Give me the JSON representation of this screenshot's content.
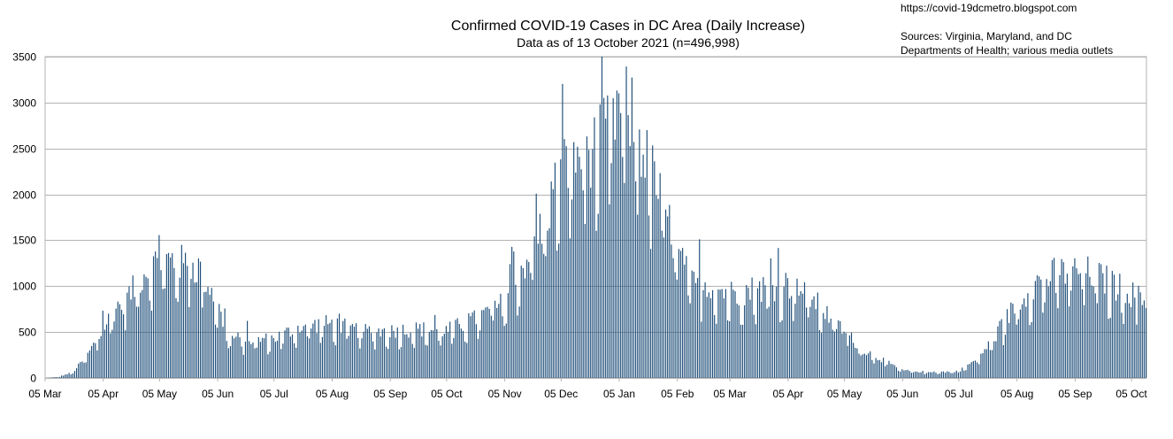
{
  "chart_data": {
    "type": "bar",
    "title": "Confirmed COVID-19 Cases in DC Area (Daily Increase)",
    "subtitle": "Data as of 13 October 2021 (n=496,998)",
    "xlabel": "",
    "ylabel": "",
    "ylim": [
      0,
      3500
    ],
    "yticks": [
      0,
      500,
      1000,
      1500,
      2000,
      2500,
      3000,
      3500
    ],
    "x_start_date": "2020-03-05",
    "x_end_date": "2021-10-13",
    "xtick_labels": [
      "05 Mar",
      "05 Apr",
      "05 May",
      "05 Jun",
      "05 Jul",
      "05 Aug",
      "05 Sep",
      "05 Oct",
      "05 Nov",
      "05 Dec",
      "05 Jan",
      "05 Feb",
      "05 Mar",
      "05 Apr",
      "05 May",
      "05 Jun",
      "05 Jul",
      "05 Aug",
      "05 Sep",
      "05 Oct"
    ],
    "xtick_dates": [
      "2020-03-05",
      "2020-04-05",
      "2020-05-05",
      "2020-06-05",
      "2020-07-05",
      "2020-08-05",
      "2020-09-05",
      "2020-10-05",
      "2020-11-05",
      "2020-12-05",
      "2021-01-05",
      "2021-02-05",
      "2021-03-05",
      "2021-04-05",
      "2021-05-05",
      "2021-06-05",
      "2021-07-05",
      "2021-08-05",
      "2021-09-05",
      "2021-10-05"
    ],
    "grid": true,
    "bar_color": "#1f4e79",
    "series": [
      {
        "name": "",
        "anchors": [
          [
            "2020-03-05",
            0
          ],
          [
            "2020-03-12",
            10
          ],
          [
            "2020-03-20",
            60
          ],
          [
            "2020-03-28",
            250
          ],
          [
            "2020-04-05",
            520
          ],
          [
            "2020-04-12",
            750
          ],
          [
            "2020-04-20",
            900
          ],
          [
            "2020-04-28",
            1150
          ],
          [
            "2020-05-05",
            1250
          ],
          [
            "2020-05-12",
            1250
          ],
          [
            "2020-05-20",
            1200
          ],
          [
            "2020-05-28",
            1150
          ],
          [
            "2020-06-05",
            800
          ],
          [
            "2020-06-10",
            450
          ],
          [
            "2020-06-20",
            400
          ],
          [
            "2020-07-05",
            420
          ],
          [
            "2020-07-20",
            550
          ],
          [
            "2020-08-05",
            580
          ],
          [
            "2020-08-20",
            500
          ],
          [
            "2020-09-05",
            500
          ],
          [
            "2020-09-20",
            520
          ],
          [
            "2020-10-05",
            500
          ],
          [
            "2020-10-20",
            620
          ],
          [
            "2020-11-05",
            800
          ],
          [
            "2020-11-15",
            1200
          ],
          [
            "2020-11-25",
            1600
          ],
          [
            "2020-12-05",
            2200
          ],
          [
            "2020-12-15",
            2400
          ],
          [
            "2020-12-25",
            2450
          ],
          [
            "2021-01-05",
            2900
          ],
          [
            "2021-01-12",
            2800
          ],
          [
            "2021-01-20",
            2300
          ],
          [
            "2021-01-28",
            1900
          ],
          [
            "2021-02-05",
            1350
          ],
          [
            "2021-02-12",
            1000
          ],
          [
            "2021-02-20",
            1000
          ],
          [
            "2021-03-05",
            900
          ],
          [
            "2021-03-20",
            950
          ],
          [
            "2021-04-05",
            1000
          ],
          [
            "2021-04-15",
            900
          ],
          [
            "2021-04-25",
            700
          ],
          [
            "2021-05-05",
            500
          ],
          [
            "2021-05-15",
            300
          ],
          [
            "2021-05-25",
            200
          ],
          [
            "2021-06-05",
            80
          ],
          [
            "2021-06-20",
            60
          ],
          [
            "2021-07-05",
            70
          ],
          [
            "2021-07-15",
            200
          ],
          [
            "2021-07-25",
            450
          ],
          [
            "2021-08-05",
            800
          ],
          [
            "2021-08-15",
            1000
          ],
          [
            "2021-08-25",
            1100
          ],
          [
            "2021-09-05",
            1150
          ],
          [
            "2021-09-15",
            1100
          ],
          [
            "2021-09-25",
            1000
          ],
          [
            "2021-10-05",
            900
          ],
          [
            "2021-10-13",
            800
          ]
        ]
      }
    ]
  },
  "credits": {
    "url": "https://covid-19dcmetro.blogspot.com",
    "sources_line1": "Sources: Virginia, Maryland, and DC",
    "sources_line2": "Departments of Health; various media outlets"
  }
}
